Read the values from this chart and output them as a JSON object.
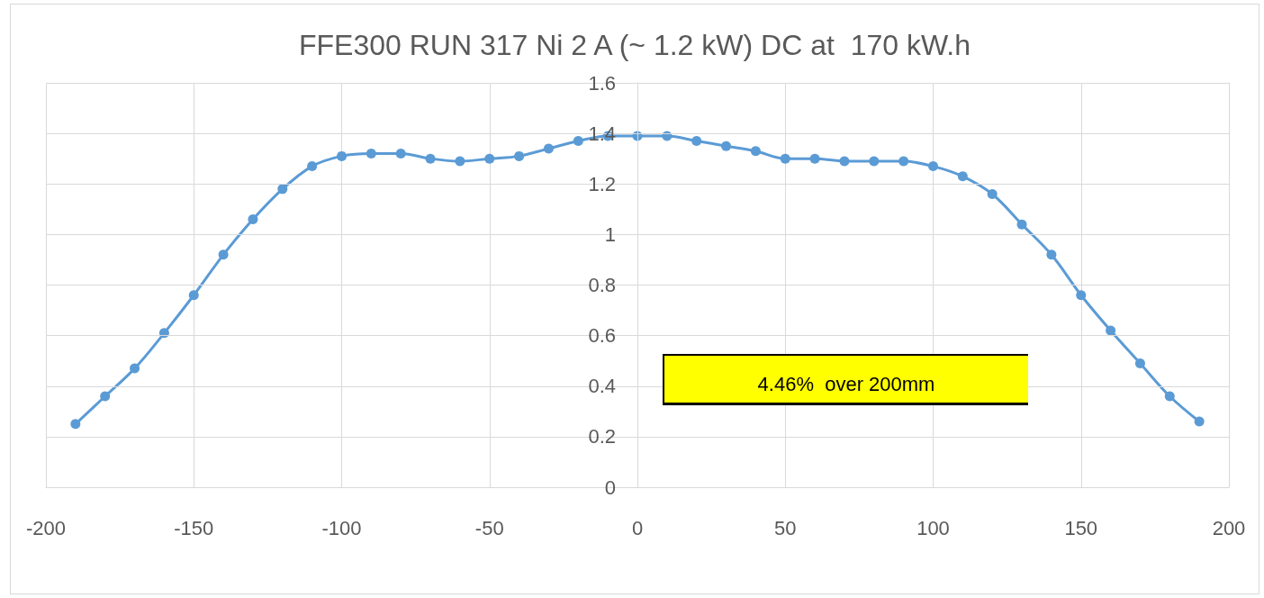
{
  "chart_data": {
    "type": "line",
    "title": "FFE300 RUN 317 Ni 2 A (~ 1.2 kW) DC at  170 kW.h",
    "x": [
      -190,
      -180,
      -170,
      -160,
      -150,
      -140,
      -130,
      -120,
      -110,
      -100,
      -90,
      -80,
      -70,
      -60,
      -50,
      -40,
      -30,
      -20,
      -10,
      0,
      10,
      20,
      30,
      40,
      50,
      60,
      70,
      80,
      90,
      100,
      110,
      120,
      130,
      140,
      150,
      160,
      170,
      180,
      190
    ],
    "values": [
      0.25,
      0.36,
      0.47,
      0.61,
      0.76,
      0.92,
      1.06,
      1.18,
      1.27,
      1.31,
      1.32,
      1.32,
      1.3,
      1.29,
      1.3,
      1.31,
      1.34,
      1.37,
      1.39,
      1.39,
      1.39,
      1.37,
      1.35,
      1.33,
      1.3,
      1.3,
      1.29,
      1.29,
      1.29,
      1.27,
      1.23,
      1.16,
      1.04,
      0.92,
      0.76,
      0.62,
      0.49,
      0.36,
      0.26
    ],
    "color": "#5b9bd5",
    "xlim": [
      -200,
      200
    ],
    "xticks": [
      -200,
      -150,
      -100,
      -50,
      0,
      50,
      100,
      150,
      200
    ],
    "ylim": [
      0,
      1.6
    ],
    "yticks": [
      0,
      0.2,
      0.4,
      0.6,
      0.8,
      1,
      1.2,
      1.4,
      1.6
    ],
    "grid": true,
    "marker": "circle",
    "line_style": "solid",
    "annotations": [
      "4.46%  over 200mm"
    ]
  }
}
